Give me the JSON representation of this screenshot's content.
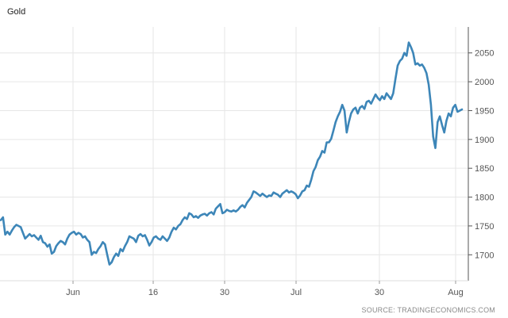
{
  "chart_data": {
    "type": "line",
    "title": "Gold",
    "source": "SOURCE: TRADINGECONOMICS.COM",
    "xlabel": "",
    "ylabel": "",
    "ylim": [
      1655,
      2095
    ],
    "yticks": [
      1700,
      1750,
      1800,
      1850,
      1900,
      1950,
      2000,
      2050
    ],
    "x_tick_labels": [
      "Jun",
      "16",
      "30",
      "Jul",
      "30",
      "Aug"
    ],
    "grid": true,
    "legend": "none",
    "colors": {
      "line": "#3d86b8",
      "grid": "#e6e6e6",
      "axis": "#555555"
    },
    "series": [
      {
        "values": [
          1760,
          1765,
          1735,
          1740,
          1735,
          1742,
          1748,
          1752,
          1750,
          1748,
          1738,
          1728,
          1732,
          1736,
          1732,
          1734,
          1730,
          1726,
          1733,
          1722,
          1720,
          1714,
          1718,
          1702,
          1705,
          1715,
          1720,
          1724,
          1722,
          1718,
          1728,
          1735,
          1738,
          1740,
          1735,
          1738,
          1736,
          1730,
          1732,
          1726,
          1722,
          1700,
          1705,
          1703,
          1710,
          1715,
          1722,
          1718,
          1700,
          1683,
          1687,
          1696,
          1702,
          1698,
          1710,
          1706,
          1715,
          1722,
          1732,
          1730,
          1728,
          1722,
          1733,
          1736,
          1732,
          1734,
          1726,
          1716,
          1722,
          1730,
          1732,
          1728,
          1726,
          1732,
          1728,
          1724,
          1730,
          1740,
          1747,
          1744,
          1750,
          1753,
          1760,
          1765,
          1762,
          1772,
          1770,
          1765,
          1767,
          1764,
          1768,
          1770,
          1771,
          1768,
          1772,
          1774,
          1770,
          1780,
          1784,
          1788,
          1772,
          1774,
          1778,
          1776,
          1775,
          1777,
          1775,
          1778,
          1783,
          1786,
          1782,
          1790,
          1795,
          1800,
          1810,
          1808,
          1805,
          1802,
          1806,
          1803,
          1800,
          1803,
          1802,
          1808,
          1806,
          1804,
          1800,
          1806,
          1809,
          1812,
          1808,
          1810,
          1808,
          1805,
          1798,
          1803,
          1810,
          1812,
          1820,
          1818,
          1830,
          1845,
          1852,
          1864,
          1870,
          1880,
          1877,
          1895,
          1895,
          1901,
          1915,
          1930,
          1940,
          1948,
          1960,
          1950,
          1912,
          1930,
          1945,
          1952,
          1955,
          1945,
          1955,
          1958,
          1953,
          1965,
          1967,
          1962,
          1970,
          1978,
          1972,
          1968,
          1975,
          1970,
          1980,
          1975,
          1970,
          1980,
          2005,
          2028,
          2036,
          2040,
          2050,
          2045,
          2068,
          2060,
          2050,
          2030,
          2032,
          2028,
          2030,
          2024,
          2015,
          1995,
          1960,
          1905,
          1885,
          1930,
          1940,
          1925,
          1912,
          1932,
          1945,
          1940,
          1955,
          1960,
          1948,
          1950,
          1952
        ]
      }
    ]
  }
}
